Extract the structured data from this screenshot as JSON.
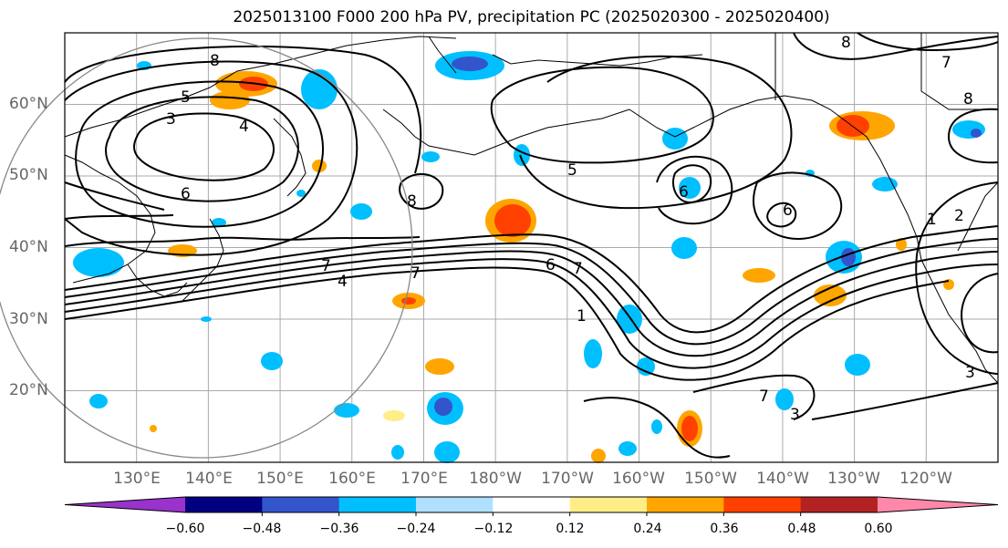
{
  "title": "2025013100 F000 200 hPa PV, precipitation PC (2025020300 - 2025020400)",
  "map": {
    "lon_range": [
      120,
      250
    ],
    "lat_range": [
      10,
      70
    ],
    "lat_ticks": [
      "20°N",
      "30°N",
      "40°N",
      "50°N",
      "60°N"
    ],
    "lon_ticks": [
      "130°E",
      "140°E",
      "150°E",
      "160°E",
      "170°E",
      "180°W",
      "170°W",
      "160°W",
      "150°W",
      "140°W",
      "130°W",
      "120°W"
    ],
    "grid": true
  },
  "contours": {
    "labels": [
      "8",
      "5",
      "3",
      "4",
      "6",
      "8",
      "7",
      "4",
      "7",
      "6",
      "7",
      "1",
      "5",
      "6",
      "6",
      "8",
      "7",
      "8",
      "1",
      "2",
      "3",
      "7",
      "3"
    ]
  },
  "colorbar": {
    "tick_labels": [
      "−0.60",
      "−0.48",
      "−0.36",
      "−0.24",
      "−0.12",
      "0.12",
      "0.24",
      "0.36",
      "0.48",
      "0.60"
    ],
    "colors": [
      "#9933cc",
      "#000080",
      "#3355cc",
      "#00bfff",
      "#b0e0ff",
      "#ffffff",
      "#ffee88",
      "#ffa500",
      "#ff4000",
      "#b22222",
      "#ff88aa"
    ],
    "extend": "both"
  },
  "colors": {
    "land_outline": "#000000",
    "grid": "#aaaaaa",
    "circle": "#888888"
  }
}
